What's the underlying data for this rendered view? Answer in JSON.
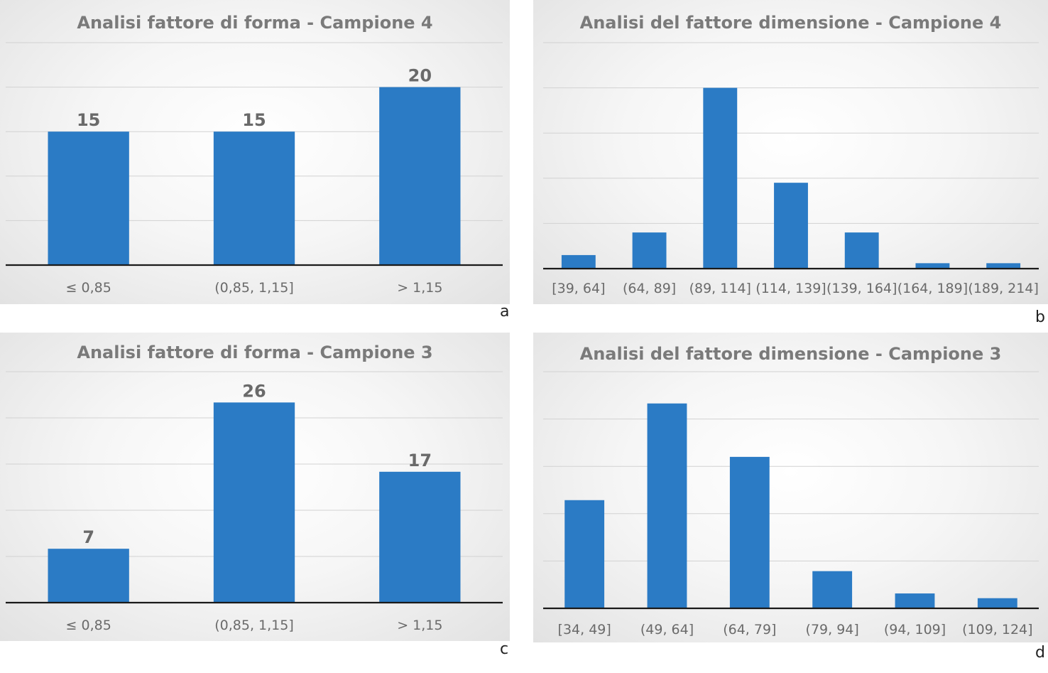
{
  "panels": [
    {
      "letter": "a"
    },
    {
      "letter": "b"
    },
    {
      "letter": "c"
    },
    {
      "letter": "d"
    }
  ],
  "chart_data": [
    {
      "type": "bar",
      "title": "Analisi fattore di forma - Campione 4",
      "categories": [
        "≤ 0,85",
        "(0,85, 1,15]",
        "> 1,15"
      ],
      "values": [
        15,
        15,
        20
      ],
      "data_labels": true,
      "ylim": [
        0,
        25
      ],
      "grid": true,
      "color": "#2b7bc5"
    },
    {
      "type": "bar",
      "title": "Analisi del fattore dimensione - Campione 4",
      "categories": [
        "[39, 64]",
        "(64, 89]",
        "(89, 114]",
        "(114, 139]",
        "(139, 164]",
        "(164, 189]",
        "(189, 214]"
      ],
      "values": [
        1.5,
        4,
        20,
        9.5,
        4,
        0.6,
        0.6
      ],
      "data_labels": false,
      "ylim": [
        0,
        25
      ],
      "grid": true,
      "color": "#2b7bc5"
    },
    {
      "type": "bar",
      "title": "Analisi fattore di forma - Campione 3",
      "categories": [
        "≤ 0,85",
        "(0,85, 1,15]",
        "> 1,15"
      ],
      "values": [
        7,
        26,
        17
      ],
      "data_labels": true,
      "ylim": [
        0,
        30
      ],
      "grid": true,
      "color": "#2b7bc5"
    },
    {
      "type": "bar",
      "title": "Analisi del fattore dimensione - Campione 3",
      "categories": [
        "[34, 49]",
        "(49, 64]",
        "(64, 79]",
        "(79, 94]",
        "(94, 109]",
        "(109, 124]"
      ],
      "values": [
        16,
        30.3,
        22.4,
        5.5,
        2.2,
        1.5
      ],
      "data_labels": false,
      "ylim": [
        0,
        35
      ],
      "grid": true,
      "color": "#2b7bc5"
    }
  ]
}
